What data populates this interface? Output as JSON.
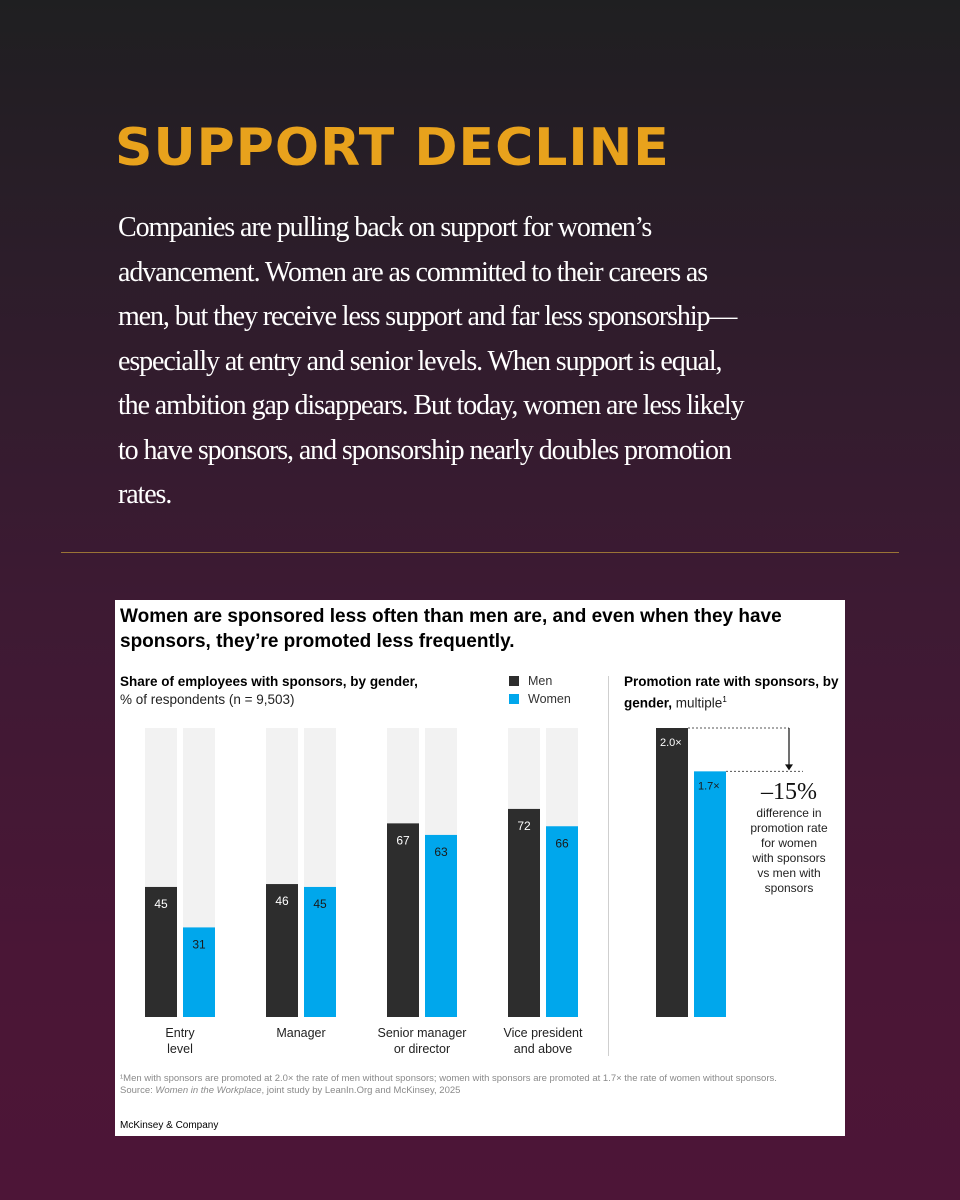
{
  "headline": "SUPPORT DECLINE",
  "intro": "Companies are pulling back on support for women’s advancement. Women are as committed to their careers as men, but they receive less support and far less sponsorship—especially at entry and senior levels. When support is equal, the ambition gap disappears. But today, women are less likely to have sponsors, and sponsorship nearly doubles promotion rates.",
  "card": {
    "title": "Women are sponsored less often than men are, and even when they have sponsors, they’re promoted less frequently.",
    "footnote_line1": "¹Men with sponsors are promoted at 2.0× the rate of men without sponsors; women with sponsors are promoted at 1.7× the rate of women without sponsors.",
    "source_label": "Source: ",
    "source_title": "Women in the Workplace",
    "source_rest": ", joint study by LeanIn.Org and McKinsey, 2025",
    "brand": "McKinsey & Company"
  },
  "colors": {
    "accent": "#e8a21c",
    "men": "#2d2d2d",
    "women": "#00a7ec",
    "track": "#f2f2f2"
  },
  "chart_data": [
    {
      "type": "bar",
      "title": "Share of employees with sponsors, by gender,",
      "subtitle": "% of respondents (n = 9,503)",
      "categories": [
        [
          "Entry",
          "level"
        ],
        [
          "Manager"
        ],
        [
          "Senior manager",
          "or director"
        ],
        [
          "Vice president",
          "and above"
        ]
      ],
      "series": [
        {
          "name": "Men",
          "values": [
            45,
            46,
            67,
            72
          ],
          "color": "#2d2d2d"
        },
        {
          "name": "Women",
          "values": [
            31,
            45,
            63,
            66
          ],
          "color": "#00a7ec"
        }
      ],
      "ylim": [
        0,
        100
      ],
      "legend": "top-right"
    },
    {
      "type": "bar",
      "title": "Promotion rate with sponsors, by gender,",
      "title_suffix": "multiple",
      "title_sup": "1",
      "series": [
        {
          "name": "Men",
          "value": 2.0,
          "label": "2.0×",
          "color": "#2d2d2d"
        },
        {
          "name": "Women",
          "value": 1.7,
          "label": "1.7×",
          "color": "#00a7ec"
        }
      ],
      "ylim": [
        0,
        2.0
      ],
      "annotation": {
        "value": "–15%",
        "lines": [
          "difference in",
          "promotion rate",
          "for women",
          "with sponsors",
          "vs men with",
          "sponsors"
        ]
      }
    }
  ]
}
